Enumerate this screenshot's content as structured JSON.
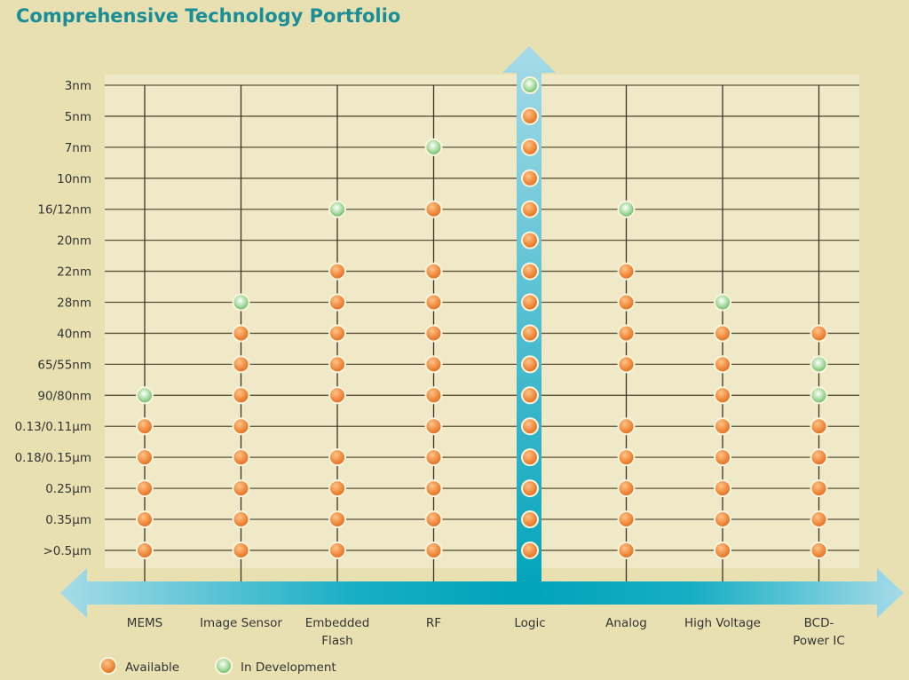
{
  "chart_data": {
    "type": "table",
    "title": "Comprehensive Technology Portfolio",
    "rows": [
      "3nm",
      "5nm",
      "7nm",
      "10nm",
      "16/12nm",
      "20nm",
      "22nm",
      "28nm",
      "40nm",
      "65/55nm",
      "90/80nm",
      "0.13/0.11μm",
      "0.18/0.15μm",
      "0.25μm",
      "0.35μm",
      ">0.5μm"
    ],
    "columns": [
      {
        "name": "MEMS",
        "lines": [
          "MEMS"
        ],
        "status": {
          "90/80nm": "dev",
          "0.13/0.11μm": "avail",
          "0.18/0.15μm": "avail",
          "0.25μm": "avail",
          "0.35μm": "avail",
          ">0.5μm": "avail"
        }
      },
      {
        "name": "Image Sensor",
        "lines": [
          "Image Sensor"
        ],
        "status": {
          "28nm": "dev",
          "40nm": "avail",
          "65/55nm": "avail",
          "90/80nm": "avail",
          "0.13/0.11μm": "avail",
          "0.18/0.15μm": "avail",
          "0.25μm": "avail",
          "0.35μm": "avail",
          ">0.5μm": "avail"
        }
      },
      {
        "name": "Embedded Flash",
        "lines": [
          "Embedded",
          "Flash"
        ],
        "status": {
          "16/12nm": "dev",
          "22nm": "avail",
          "28nm": "avail",
          "40nm": "avail",
          "65/55nm": "avail",
          "90/80nm": "avail",
          "0.18/0.15μm": "avail",
          "0.25μm": "avail",
          "0.35μm": "avail",
          ">0.5μm": "avail"
        }
      },
      {
        "name": "RF",
        "lines": [
          "RF"
        ],
        "status": {
          "7nm": "dev",
          "16/12nm": "avail",
          "22nm": "avail",
          "28nm": "avail",
          "40nm": "avail",
          "65/55nm": "avail",
          "90/80nm": "avail",
          "0.13/0.11μm": "avail",
          "0.18/0.15μm": "avail",
          "0.25μm": "avail",
          "0.35μm": "avail",
          ">0.5μm": "avail"
        }
      },
      {
        "name": "Logic",
        "lines": [
          "Logic"
        ],
        "status": {
          "3nm": "dev",
          "5nm": "avail",
          "7nm": "avail",
          "10nm": "avail",
          "16/12nm": "avail",
          "20nm": "avail",
          "22nm": "avail",
          "28nm": "avail",
          "40nm": "avail",
          "65/55nm": "avail",
          "90/80nm": "avail",
          "0.13/0.11μm": "avail",
          "0.18/0.15μm": "avail",
          "0.25μm": "avail",
          "0.35μm": "avail",
          ">0.5μm": "avail"
        }
      },
      {
        "name": "Analog",
        "lines": [
          "Analog"
        ],
        "status": {
          "16/12nm": "dev",
          "22nm": "avail",
          "28nm": "avail",
          "40nm": "avail",
          "65/55nm": "avail",
          "0.13/0.11μm": "avail",
          "0.18/0.15μm": "avail",
          "0.25μm": "avail",
          "0.35μm": "avail",
          ">0.5μm": "avail"
        }
      },
      {
        "name": "High Voltage",
        "lines": [
          "High Voltage"
        ],
        "status": {
          "28nm": "dev",
          "40nm": "avail",
          "65/55nm": "avail",
          "90/80nm": "avail",
          "0.13/0.11μm": "avail",
          "0.18/0.15μm": "avail",
          "0.25μm": "avail",
          "0.35μm": "avail",
          ">0.5μm": "avail"
        }
      },
      {
        "name": "BCD-Power IC",
        "lines": [
          "BCD-",
          "Power IC"
        ],
        "status": {
          "40nm": "avail",
          "65/55nm": "dev",
          "90/80nm": "dev",
          "0.13/0.11μm": "avail",
          "0.18/0.15μm": "avail",
          "0.25μm": "avail",
          "0.35μm": "avail",
          ">0.5μm": "avail"
        }
      }
    ],
    "legend": [
      {
        "key": "avail",
        "label": "Available",
        "color": "#f08a3c"
      },
      {
        "key": "dev",
        "label": "In Development",
        "color": "#7cc47a"
      }
    ],
    "legend_position": "bottom-left"
  }
}
